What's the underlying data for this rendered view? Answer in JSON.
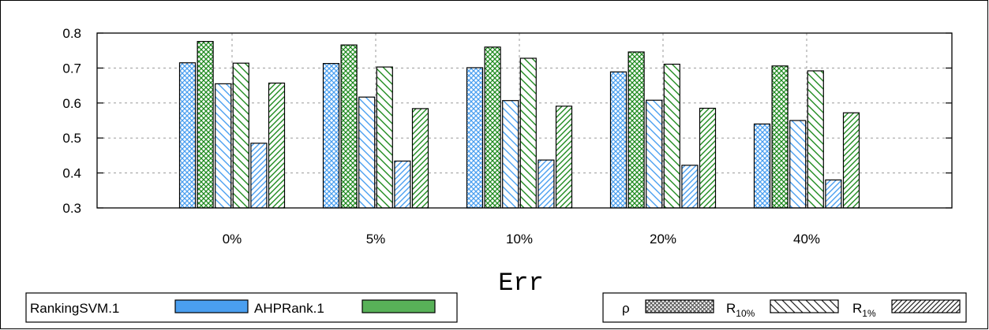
{
  "chart_data": {
    "type": "bar",
    "title": "",
    "xlabel": "Err",
    "ylabel": "",
    "categories": [
      "0%",
      "5%",
      "10%",
      "20%",
      "40%"
    ],
    "ylim": [
      0.3,
      0.8
    ],
    "yticks": [
      "0.3",
      "0.4",
      "0.5",
      "0.6",
      "0.7",
      "0.8"
    ],
    "grid": true,
    "series": [
      {
        "method": "RankingSVM.1",
        "metric": "ρ",
        "values": [
          0.715,
          0.713,
          0.701,
          0.689,
          0.54
        ]
      },
      {
        "method": "AHPRank.1",
        "metric": "ρ",
        "values": [
          0.776,
          0.766,
          0.76,
          0.746,
          0.706
        ]
      },
      {
        "method": "RankingSVM.1",
        "metric": "R10%",
        "values": [
          0.655,
          0.617,
          0.607,
          0.608,
          0.55
        ]
      },
      {
        "method": "AHPRank.1",
        "metric": "R10%",
        "values": [
          0.714,
          0.703,
          0.728,
          0.711,
          0.692
        ]
      },
      {
        "method": "RankingSVM.1",
        "metric": "R1%",
        "values": [
          0.485,
          0.434,
          0.437,
          0.422,
          0.38
        ]
      },
      {
        "method": "AHPRank.1",
        "metric": "R1%",
        "values": [
          0.657,
          0.584,
          0.591,
          0.585,
          0.572
        ]
      }
    ],
    "legend_methods": [
      {
        "name": "RankingSVM.1",
        "color": "#4a9ff0"
      },
      {
        "name": "AHPRank.1",
        "color": "#58b158"
      }
    ],
    "legend_metrics": [
      {
        "name": "ρ",
        "sub": "",
        "pattern": "crosshatch"
      },
      {
        "name": "R",
        "sub": "10%",
        "pattern": "backslash"
      },
      {
        "name": "R",
        "sub": "1%",
        "pattern": "slash"
      }
    ],
    "legend_placement": "bottom"
  }
}
